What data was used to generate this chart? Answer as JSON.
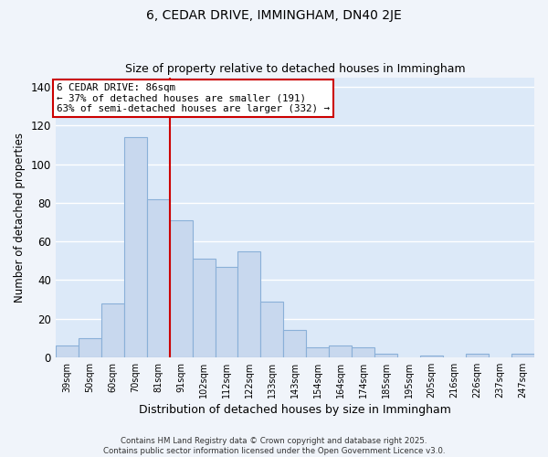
{
  "title": "6, CEDAR DRIVE, IMMINGHAM, DN40 2JE",
  "subtitle": "Size of property relative to detached houses in Immingham",
  "xlabel": "Distribution of detached houses by size in Immingham",
  "ylabel": "Number of detached properties",
  "bar_labels": [
    "39sqm",
    "50sqm",
    "60sqm",
    "70sqm",
    "81sqm",
    "91sqm",
    "102sqm",
    "112sqm",
    "122sqm",
    "133sqm",
    "143sqm",
    "154sqm",
    "164sqm",
    "174sqm",
    "185sqm",
    "195sqm",
    "205sqm",
    "216sqm",
    "226sqm",
    "237sqm",
    "247sqm"
  ],
  "bar_values": [
    6,
    10,
    28,
    114,
    82,
    71,
    51,
    47,
    55,
    29,
    14,
    5,
    6,
    5,
    2,
    0,
    1,
    0,
    2,
    0,
    2
  ],
  "bar_color": "#c8d8ee",
  "bar_edge_color": "#8ab0d8",
  "vline_x": 4.5,
  "vline_color": "#cc0000",
  "annotation_title": "6 CEDAR DRIVE: 86sqm",
  "annotation_line1": "← 37% of detached houses are smaller (191)",
  "annotation_line2": "63% of semi-detached houses are larger (332) →",
  "ylim": [
    0,
    145
  ],
  "yticks": [
    0,
    20,
    40,
    60,
    80,
    100,
    120,
    140
  ],
  "footer_line1": "Contains HM Land Registry data © Crown copyright and database right 2025.",
  "footer_line2": "Contains public sector information licensed under the Open Government Licence v3.0.",
  "plot_bg_color": "#dce9f8",
  "fig_bg_color": "#f0f4fa",
  "grid_color": "#ffffff",
  "title_fontsize": 10,
  "subtitle_fontsize": 9
}
